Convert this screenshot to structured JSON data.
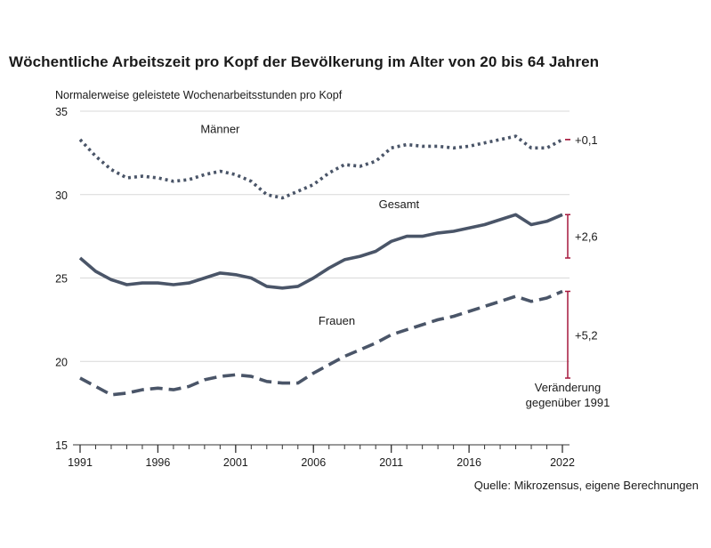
{
  "title": "Wöchentliche Arbeitszeit pro Kopf der Bevölkerung im Alter von 20 bis 64 Jahren",
  "source": "Quelle: Mikrozensus, eigene Berechnungen",
  "chart_data": {
    "type": "line",
    "title": "Wöchentliche Arbeitszeit pro Kopf der Bevölkerung im Alter von 20 bis 64 Jahren",
    "ylabel": "Normalerweise geleistete Wochenarbeitsstunden pro Kopf",
    "xlabel": "",
    "ylim": [
      15,
      35
    ],
    "xlim": [
      1991,
      2022
    ],
    "y_ticks": [
      "15",
      "20",
      "25",
      "30",
      "35"
    ],
    "x_ticks": [
      "1991",
      "1996",
      "2001",
      "2006",
      "2011",
      "2016",
      "2022"
    ],
    "grid": "horizontal",
    "x": [
      1991,
      1992,
      1993,
      1994,
      1995,
      1996,
      1997,
      1998,
      1999,
      2000,
      2001,
      2002,
      2003,
      2004,
      2005,
      2006,
      2007,
      2008,
      2009,
      2010,
      2011,
      2012,
      2013,
      2014,
      2015,
      2016,
      2017,
      2018,
      2019,
      2020,
      2021,
      2022
    ],
    "series": [
      {
        "name": "Männer",
        "style": "dotted",
        "values": [
          33.3,
          32.3,
          31.5,
          31.0,
          31.1,
          31.0,
          30.8,
          30.9,
          31.2,
          31.4,
          31.2,
          30.8,
          30.0,
          29.8,
          30.2,
          30.6,
          31.3,
          31.8,
          31.7,
          32.0,
          32.8,
          33.0,
          32.9,
          32.9,
          32.8,
          32.9,
          33.1,
          33.3,
          33.5,
          32.8,
          32.8,
          33.3
        ]
      },
      {
        "name": "Gesamt",
        "style": "solid",
        "values": [
          26.2,
          25.4,
          24.9,
          24.6,
          24.7,
          24.7,
          24.6,
          24.7,
          25.0,
          25.3,
          25.2,
          25.0,
          24.5,
          24.4,
          24.5,
          25.0,
          25.6,
          26.1,
          26.3,
          26.6,
          27.2,
          27.5,
          27.5,
          27.7,
          27.8,
          28.0,
          28.2,
          28.5,
          28.8,
          28.2,
          28.4,
          28.8
        ]
      },
      {
        "name": "Frauen",
        "style": "dashed",
        "values": [
          19.0,
          18.5,
          18.0,
          18.1,
          18.3,
          18.4,
          18.3,
          18.5,
          18.9,
          19.1,
          19.2,
          19.1,
          18.8,
          18.7,
          18.7,
          19.3,
          19.8,
          20.3,
          20.7,
          21.1,
          21.6,
          21.9,
          22.2,
          22.5,
          22.7,
          23.0,
          23.3,
          23.6,
          23.9,
          23.6,
          23.8,
          24.2
        ]
      }
    ],
    "changes": [
      {
        "series": "Männer",
        "label": "+0,1"
      },
      {
        "series": "Gesamt",
        "label": "+2,6"
      },
      {
        "series": "Frauen",
        "label": "+5,2"
      }
    ],
    "annotation": [
      "Veränderung",
      "gegenüber 1991"
    ],
    "colors": {
      "line": "#4a5568",
      "grid": "#d9d9d9",
      "change": "#a6193c",
      "axis": "#333333"
    }
  }
}
